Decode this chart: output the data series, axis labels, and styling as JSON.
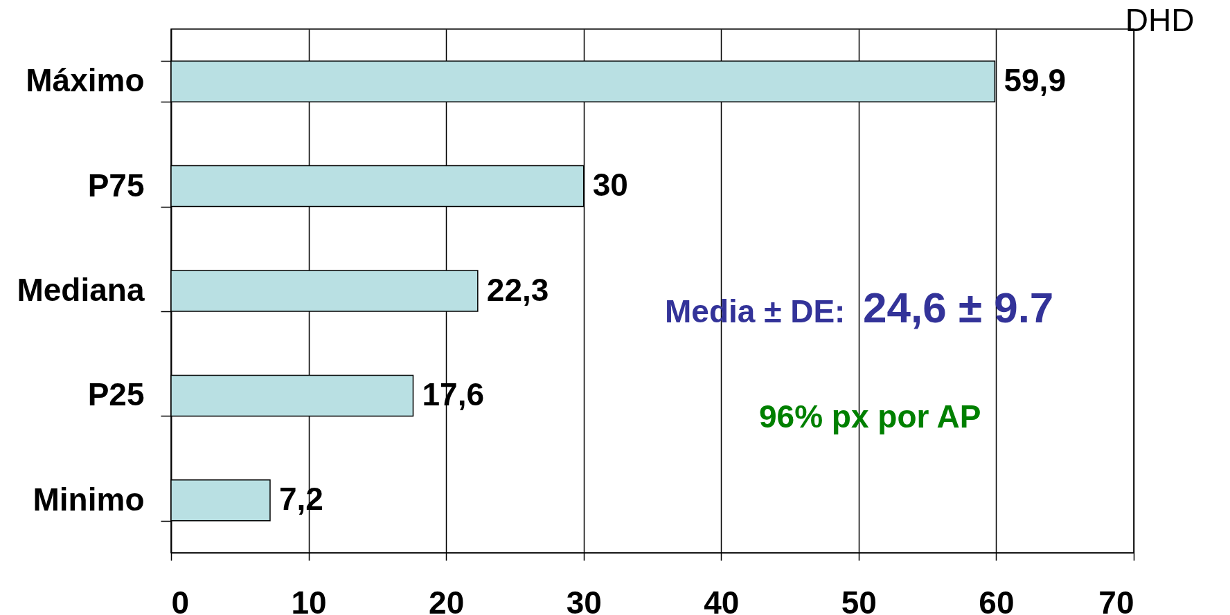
{
  "chart_data": {
    "type": "bar",
    "orientation": "horizontal",
    "categories": [
      "Máximo",
      "P75",
      "Mediana",
      "P25",
      "Minimo"
    ],
    "values": [
      59.9,
      30,
      22.3,
      17.6,
      7.2
    ],
    "color": "#b9e0e3",
    "value_labels": [
      "59,9",
      "30",
      "22,3",
      "17,6",
      "7,2"
    ],
    "xlabel": "DHD",
    "xlim": [
      0,
      70
    ],
    "xticks": [
      0,
      10,
      20,
      30,
      40,
      50,
      60,
      70
    ],
    "grid": "x",
    "annotations": [
      "Media ± DE:",
      "24,6 ± 9.7",
      "96% px por AP"
    ]
  }
}
